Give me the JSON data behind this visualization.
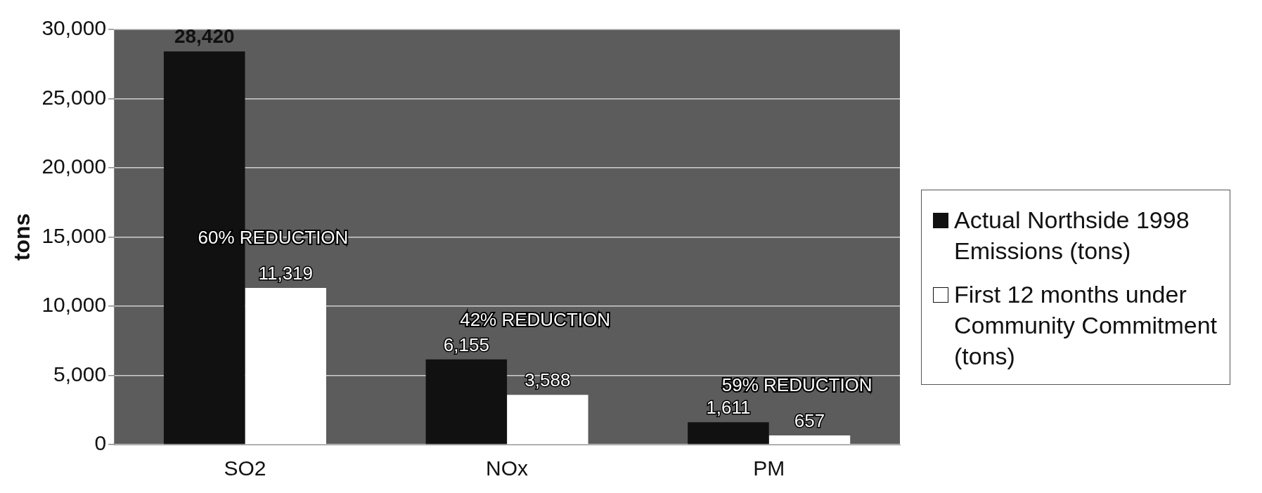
{
  "chart_data": {
    "type": "bar",
    "ylabel": "tons",
    "categories": [
      "SO2",
      "NOx",
      "PM"
    ],
    "series": [
      {
        "name": "Actual Northside 1998 Emissions (tons)",
        "color": "#111111",
        "values": [
          28420,
          6155,
          1611
        ],
        "value_labels": [
          "28,420",
          "6,155",
          "1,611"
        ]
      },
      {
        "name": "First 12 months under Community Commitment (tons)",
        "color": "#ffffff",
        "values": [
          11319,
          3588,
          657
        ],
        "value_labels": [
          "11,319",
          "3,588",
          "657"
        ]
      }
    ],
    "ylim": [
      0,
      30000
    ],
    "yticks": [
      {
        "value": 0,
        "label": "0"
      },
      {
        "value": 5000,
        "label": "5,000"
      },
      {
        "value": 10000,
        "label": "10,000"
      },
      {
        "value": 15000,
        "label": "15,000"
      },
      {
        "value": 20000,
        "label": "20,000"
      },
      {
        "value": 25000,
        "label": "25,000"
      },
      {
        "value": 30000,
        "label": "30,000"
      }
    ],
    "grid": "y",
    "legend": "right",
    "annotations": [
      "60% REDUCTION",
      "42% REDUCTION",
      "59% REDUCTION"
    ]
  }
}
